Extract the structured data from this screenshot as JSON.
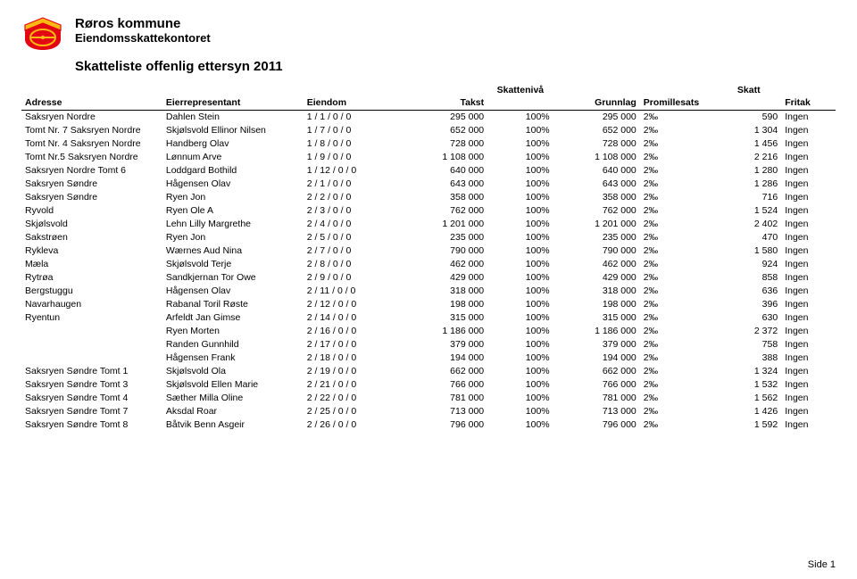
{
  "header": {
    "municipality": "Røros kommune",
    "office": "Eiendomsskattekontoret",
    "subtitle": "Skatteliste offenlig ettersyn 2011"
  },
  "table": {
    "super_headers": {
      "skattenivaa": "Skattenivå",
      "skatt": "Skatt"
    },
    "columns": {
      "adresse": "Adresse",
      "eier": "Eierrepresentant",
      "eiendom": "Eiendom",
      "takst": "Takst",
      "grunnlag": "Grunnlag",
      "promille": "Promillesats",
      "fritak": "Fritak"
    },
    "rows": [
      {
        "adresse": "Saksryen Nordre",
        "eier": "Dahlen Stein",
        "eiendom": "1 / 1 / 0 / 0",
        "takst": "295 000",
        "nivaa": "100%",
        "grunnlag": "295 000",
        "promille": "2‰",
        "skatt": "590",
        "fritak": "Ingen"
      },
      {
        "adresse": "Tomt Nr. 7 Saksryen Nordre",
        "eier": "Skjølsvold Ellinor Nilsen",
        "eiendom": "1 / 7 / 0 / 0",
        "takst": "652 000",
        "nivaa": "100%",
        "grunnlag": "652 000",
        "promille": "2‰",
        "skatt": "1 304",
        "fritak": "Ingen"
      },
      {
        "adresse": "Tomt Nr. 4 Saksryen Nordre",
        "eier": "Handberg Olav",
        "eiendom": "1 / 8 / 0 / 0",
        "takst": "728 000",
        "nivaa": "100%",
        "grunnlag": "728 000",
        "promille": "2‰",
        "skatt": "1 456",
        "fritak": "Ingen"
      },
      {
        "adresse": "Tomt Nr.5 Saksryen Nordre",
        "eier": "Lønnum Arve",
        "eiendom": "1 / 9 / 0 / 0",
        "takst": "1 108 000",
        "nivaa": "100%",
        "grunnlag": "1 108 000",
        "promille": "2‰",
        "skatt": "2 216",
        "fritak": "Ingen"
      },
      {
        "adresse": "Saksryen Nordre Tomt 6",
        "eier": "Loddgard Bothild",
        "eiendom": "1 / 12 / 0 / 0",
        "takst": "640 000",
        "nivaa": "100%",
        "grunnlag": "640 000",
        "promille": "2‰",
        "skatt": "1 280",
        "fritak": "Ingen"
      },
      {
        "adresse": "Saksryen Søndre",
        "eier": "Hågensen Olav",
        "eiendom": "2 / 1 / 0 / 0",
        "takst": "643 000",
        "nivaa": "100%",
        "grunnlag": "643 000",
        "promille": "2‰",
        "skatt": "1 286",
        "fritak": "Ingen"
      },
      {
        "adresse": "Saksryen Søndre",
        "eier": "Ryen Jon",
        "eiendom": "2 / 2 / 0 / 0",
        "takst": "358 000",
        "nivaa": "100%",
        "grunnlag": "358 000",
        "promille": "2‰",
        "skatt": "716",
        "fritak": "Ingen"
      },
      {
        "adresse": "Ryvold",
        "eier": "Ryen Ole A",
        "eiendom": "2 / 3 / 0 / 0",
        "takst": "762 000",
        "nivaa": "100%",
        "grunnlag": "762 000",
        "promille": "2‰",
        "skatt": "1 524",
        "fritak": "Ingen"
      },
      {
        "adresse": "Skjølsvold",
        "eier": "Lehn Lilly Margrethe",
        "eiendom": "2 / 4 / 0 / 0",
        "takst": "1 201 000",
        "nivaa": "100%",
        "grunnlag": "1 201 000",
        "promille": "2‰",
        "skatt": "2 402",
        "fritak": "Ingen"
      },
      {
        "adresse": "Sakstrøen",
        "eier": "Ryen Jon",
        "eiendom": "2 / 5 / 0 / 0",
        "takst": "235 000",
        "nivaa": "100%",
        "grunnlag": "235 000",
        "promille": "2‰",
        "skatt": "470",
        "fritak": "Ingen"
      },
      {
        "adresse": "Rykleva",
        "eier": "Wærnes Aud Nina",
        "eiendom": "2 / 7 / 0 / 0",
        "takst": "790 000",
        "nivaa": "100%",
        "grunnlag": "790 000",
        "promille": "2‰",
        "skatt": "1 580",
        "fritak": "Ingen"
      },
      {
        "adresse": "Mæla",
        "eier": "Skjølsvold Terje",
        "eiendom": "2 / 8 / 0 / 0",
        "takst": "462 000",
        "nivaa": "100%",
        "grunnlag": "462 000",
        "promille": "2‰",
        "skatt": "924",
        "fritak": "Ingen"
      },
      {
        "adresse": "Rytrøa",
        "eier": "Sandkjernan Tor Owe",
        "eiendom": "2 / 9 / 0 / 0",
        "takst": "429 000",
        "nivaa": "100%",
        "grunnlag": "429 000",
        "promille": "2‰",
        "skatt": "858",
        "fritak": "Ingen"
      },
      {
        "adresse": "Bergstuggu",
        "eier": "Hågensen Olav",
        "eiendom": "2 / 11 / 0 / 0",
        "takst": "318 000",
        "nivaa": "100%",
        "grunnlag": "318 000",
        "promille": "2‰",
        "skatt": "636",
        "fritak": "Ingen"
      },
      {
        "adresse": "Navarhaugen",
        "eier": "Rabanal Toril Røste",
        "eiendom": "2 / 12 / 0 / 0",
        "takst": "198 000",
        "nivaa": "100%",
        "grunnlag": "198 000",
        "promille": "2‰",
        "skatt": "396",
        "fritak": "Ingen"
      },
      {
        "adresse": "Ryentun",
        "eier": "Arfeldt Jan Gimse",
        "eiendom": "2 / 14 / 0 / 0",
        "takst": "315 000",
        "nivaa": "100%",
        "grunnlag": "315 000",
        "promille": "2‰",
        "skatt": "630",
        "fritak": "Ingen"
      },
      {
        "adresse": "",
        "eier": "Ryen Morten",
        "eiendom": "2 / 16 / 0 / 0",
        "takst": "1 186 000",
        "nivaa": "100%",
        "grunnlag": "1 186 000",
        "promille": "2‰",
        "skatt": "2 372",
        "fritak": "Ingen"
      },
      {
        "adresse": "",
        "eier": "Randen Gunnhild",
        "eiendom": "2 / 17 / 0 / 0",
        "takst": "379 000",
        "nivaa": "100%",
        "grunnlag": "379 000",
        "promille": "2‰",
        "skatt": "758",
        "fritak": "Ingen"
      },
      {
        "adresse": "",
        "eier": "Hågensen Frank",
        "eiendom": "2 / 18 / 0 / 0",
        "takst": "194 000",
        "nivaa": "100%",
        "grunnlag": "194 000",
        "promille": "2‰",
        "skatt": "388",
        "fritak": "Ingen"
      },
      {
        "adresse": "Saksryen Søndre Tomt 1",
        "eier": "Skjølsvold Ola",
        "eiendom": "2 / 19 / 0 / 0",
        "takst": "662 000",
        "nivaa": "100%",
        "grunnlag": "662 000",
        "promille": "2‰",
        "skatt": "1 324",
        "fritak": "Ingen"
      },
      {
        "adresse": "Saksryen Søndre Tomt 3",
        "eier": "Skjølsvold Ellen Marie",
        "eiendom": "2 / 21 / 0 / 0",
        "takst": "766 000",
        "nivaa": "100%",
        "grunnlag": "766 000",
        "promille": "2‰",
        "skatt": "1 532",
        "fritak": "Ingen"
      },
      {
        "adresse": "Saksryen Søndre Tomt 4",
        "eier": "Sæther Milla Oline",
        "eiendom": "2 / 22 / 0 / 0",
        "takst": "781 000",
        "nivaa": "100%",
        "grunnlag": "781 000",
        "promille": "2‰",
        "skatt": "1 562",
        "fritak": "Ingen"
      },
      {
        "adresse": "Saksryen Søndre Tomt 7",
        "eier": "Aksdal Roar",
        "eiendom": "2 / 25 / 0 / 0",
        "takst": "713 000",
        "nivaa": "100%",
        "grunnlag": "713 000",
        "promille": "2‰",
        "skatt": "1 426",
        "fritak": "Ingen"
      },
      {
        "adresse": "Saksryen Søndre Tomt 8",
        "eier": "Båtvik Benn Asgeir",
        "eiendom": "2 / 26 / 0 / 0",
        "takst": "796 000",
        "nivaa": "100%",
        "grunnlag": "796 000",
        "promille": "2‰",
        "skatt": "1 592",
        "fritak": "Ingen"
      }
    ]
  },
  "footer": {
    "page": "Side 1"
  },
  "colors": {
    "logo_primary": "#e30613",
    "logo_secondary": "#fdb913",
    "text": "#000000",
    "bg": "#ffffff"
  }
}
